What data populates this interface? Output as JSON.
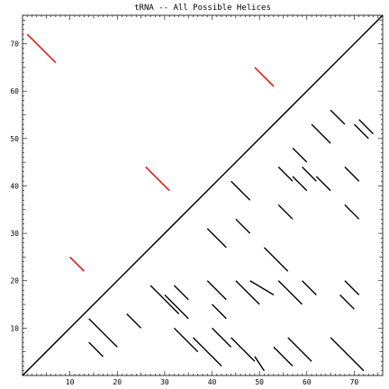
{
  "chart_data": {
    "type": "line",
    "title": "tRNA -- All Possible Helices",
    "xlabel": "",
    "ylabel": "",
    "xlim": [
      0,
      76
    ],
    "ylim": [
      0,
      76
    ],
    "x_major_ticks": [
      10,
      20,
      30,
      40,
      50,
      60,
      70
    ],
    "y_major_ticks": [
      10,
      20,
      30,
      40,
      50,
      60,
      70
    ],
    "grid": false,
    "legend": "none",
    "colors": {
      "diagonal": "#000000",
      "upper_helices": "#dd1111",
      "lower_helices": "#000000"
    },
    "diagonal": [
      [
        0,
        0
      ],
      [
        76,
        76
      ]
    ],
    "upper_helices": [
      [
        [
          1,
          72
        ],
        [
          7,
          66
        ]
      ],
      [
        [
          49,
          65
        ],
        [
          53,
          61
        ]
      ],
      [
        [
          26,
          44
        ],
        [
          31,
          39
        ]
      ],
      [
        [
          10,
          25
        ],
        [
          13,
          22
        ]
      ]
    ],
    "lower_helices": [
      [
        [
          14,
          12
        ],
        [
          20,
          6
        ]
      ],
      [
        [
          14,
          7
        ],
        [
          17,
          4
        ]
      ],
      [
        [
          22,
          13
        ],
        [
          25,
          10
        ]
      ],
      [
        [
          27,
          19
        ],
        [
          33,
          13
        ]
      ],
      [
        [
          30,
          17
        ],
        [
          35,
          12
        ]
      ],
      [
        [
          32,
          19
        ],
        [
          35,
          16
        ]
      ],
      [
        [
          32,
          10
        ],
        [
          37,
          5
        ]
      ],
      [
        [
          36,
          8
        ],
        [
          42,
          2
        ]
      ],
      [
        [
          39,
          31
        ],
        [
          43,
          27
        ]
      ],
      [
        [
          39,
          20
        ],
        [
          43,
          16
        ]
      ],
      [
        [
          40,
          15
        ],
        [
          43,
          12
        ]
      ],
      [
        [
          40,
          10
        ],
        [
          44,
          6
        ]
      ],
      [
        [
          44,
          41
        ],
        [
          48,
          37
        ]
      ],
      [
        [
          44,
          8
        ],
        [
          49,
          3
        ]
      ],
      [
        [
          45,
          20
        ],
        [
          50,
          15
        ]
      ],
      [
        [
          45,
          33
        ],
        [
          48,
          30
        ]
      ],
      [
        [
          48,
          20
        ],
        [
          53,
          17
        ]
      ],
      [
        [
          49,
          4
        ],
        [
          51,
          1
        ]
      ],
      [
        [
          51,
          27
        ],
        [
          56,
          22
        ]
      ],
      [
        [
          53,
          6
        ],
        [
          57,
          2
        ]
      ],
      [
        [
          54,
          20
        ],
        [
          59,
          15
        ]
      ],
      [
        [
          54,
          44
        ],
        [
          57,
          41
        ]
      ],
      [
        [
          54,
          36
        ],
        [
          57,
          33
        ]
      ],
      [
        [
          56,
          8
        ],
        [
          61,
          3
        ]
      ],
      [
        [
          57,
          48
        ],
        [
          60,
          45
        ]
      ],
      [
        [
          57,
          42
        ],
        [
          60,
          39
        ]
      ],
      [
        [
          59,
          44
        ],
        [
          62,
          41
        ]
      ],
      [
        [
          59,
          20
        ],
        [
          62,
          17
        ]
      ],
      [
        [
          61,
          53
        ],
        [
          65,
          49
        ]
      ],
      [
        [
          62,
          42
        ],
        [
          65,
          39
        ]
      ],
      [
        [
          65,
          56
        ],
        [
          68,
          53
        ]
      ],
      [
        [
          65,
          8
        ],
        [
          72,
          1
        ]
      ],
      [
        [
          67,
          17
        ],
        [
          70,
          14
        ]
      ],
      [
        [
          68,
          44
        ],
        [
          71,
          41
        ]
      ],
      [
        [
          68,
          36
        ],
        [
          71,
          33
        ]
      ],
      [
        [
          68,
          20
        ],
        [
          71,
          17
        ]
      ],
      [
        [
          71,
          54
        ],
        [
          74,
          51
        ]
      ],
      [
        [
          70,
          53
        ],
        [
          73,
          50
        ]
      ]
    ]
  }
}
